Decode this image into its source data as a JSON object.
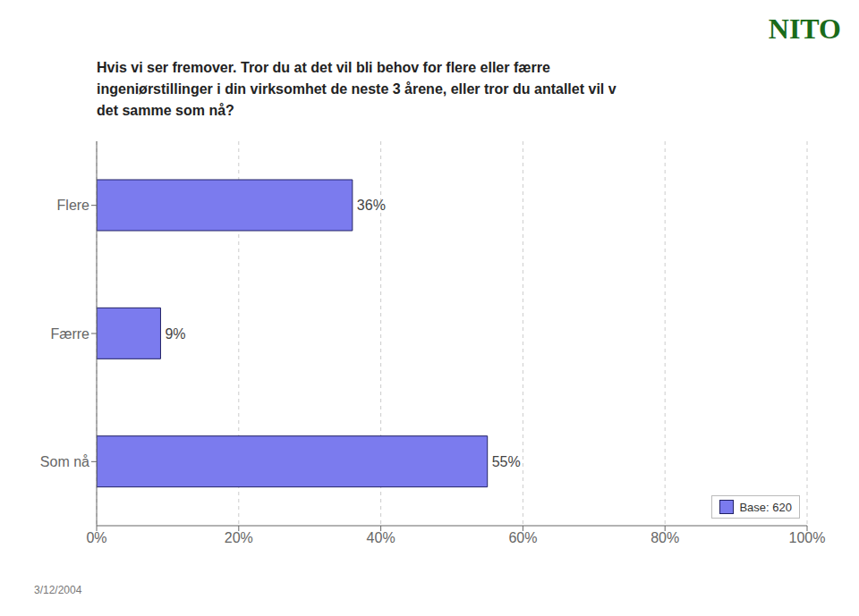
{
  "chart_data": {
    "type": "bar",
    "orientation": "horizontal",
    "title": "Hvis vi ser fremover. Tror du at det vil bli behov for flere eller færre\ningeniørstillinger i din virksomhet de neste 3 årene, eller tror du antallet vil v\ndet samme som nå?",
    "categories": [
      "Som nå",
      "Færre",
      "Flere"
    ],
    "series": [
      {
        "name": "Base: 620",
        "color": "#7B7BEE",
        "values": [
          55,
          9,
          36
        ],
        "value_labels": [
          "55%",
          "9%",
          "36%"
        ]
      }
    ],
    "xlim": [
      0,
      100
    ],
    "xticks": [
      {
        "value": 0,
        "label": "0%"
      },
      {
        "value": 20,
        "label": "20%"
      },
      {
        "value": 40,
        "label": "40%"
      },
      {
        "value": 60,
        "label": "60%"
      },
      {
        "value": 80,
        "label": "80%"
      },
      {
        "value": 100,
        "label": "100%"
      }
    ],
    "grid": true,
    "legend": "lower right",
    "data_labels": true,
    "annotations": [
      "NITO",
      "3/12/2004"
    ]
  }
}
